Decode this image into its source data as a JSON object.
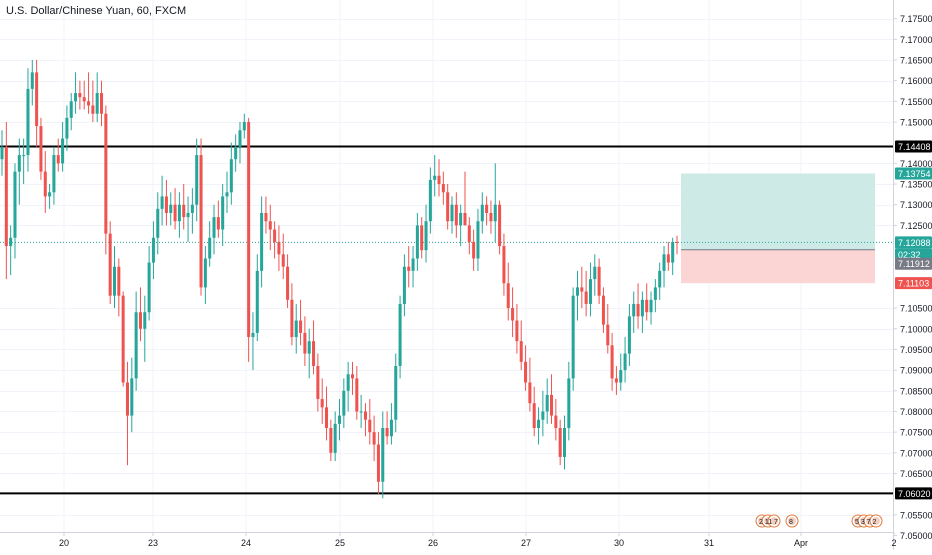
{
  "title": "U.S. Dollar/Chinese Yuan, 60, FXCM",
  "colors": {
    "up": "#26a69a",
    "down": "#ef5350",
    "grid": "#f0f3fa",
    "axis": "#d1d4dc",
    "text": "#131722",
    "level_line": "#000000",
    "level_label_bg": "#000000",
    "current_label_bg": "#26a69a",
    "position_label_bg": "#787b86",
    "stop_label_bg": "#ef5350",
    "target_zone": "#cdeae7",
    "stop_zone": "#fbd4d4"
  },
  "chart_data": {
    "type": "candlestick",
    "symbol": "U.S. Dollar/Chinese Yuan",
    "interval": "60",
    "source": "FXCM",
    "ylim": [
      7.0465,
      7.1795
    ],
    "y_ticks": [
      "7.17500",
      "7.17000",
      "7.16500",
      "7.16000",
      "7.15500",
      "7.15000",
      "7.14000",
      "7.13500",
      "7.13000",
      "7.12500",
      "7.10500",
      "7.10000",
      "7.09500",
      "7.09000",
      "7.08500",
      "7.08000",
      "7.07500",
      "7.07000",
      "7.06500",
      "7.05500",
      "7.05000"
    ],
    "x_ticks": [
      "20",
      "23",
      "24",
      "25",
      "26",
      "27",
      "30",
      "31",
      "Apr",
      "2"
    ],
    "horizontal_levels": [
      {
        "price": 7.14408,
        "label": "7.14408"
      },
      {
        "price": 7.0602,
        "label": "7.06020"
      }
    ],
    "price_labels": {
      "target": "7.13754",
      "current": "7.12088",
      "countdown": "02:32",
      "position": "7.11912",
      "stop": "7.11103"
    },
    "position_tool": {
      "entry": 7.11912,
      "target": 7.13754,
      "stop": 7.11103
    },
    "event_badges": [
      "2",
      "11",
      "7",
      "8",
      "5",
      "3",
      "7",
      "2"
    ],
    "candles": [
      {
        "o": 7.141,
        "h": 7.148,
        "l": 7.137,
        "c": 7.144
      },
      {
        "o": 7.144,
        "h": 7.15,
        "l": 7.112,
        "c": 7.12
      },
      {
        "o": 7.12,
        "h": 7.125,
        "l": 7.113,
        "c": 7.122
      },
      {
        "o": 7.122,
        "h": 7.14,
        "l": 7.117,
        "c": 7.138
      },
      {
        "o": 7.138,
        "h": 7.146,
        "l": 7.13,
        "c": 7.142
      },
      {
        "o": 7.142,
        "h": 7.146,
        "l": 7.135,
        "c": 7.142
      },
      {
        "o": 7.142,
        "h": 7.163,
        "l": 7.138,
        "c": 7.158
      },
      {
        "o": 7.158,
        "h": 7.165,
        "l": 7.154,
        "c": 7.162
      },
      {
        "o": 7.162,
        "h": 7.165,
        "l": 7.144,
        "c": 7.149
      },
      {
        "o": 7.149,
        "h": 7.151,
        "l": 7.136,
        "c": 7.138
      },
      {
        "o": 7.138,
        "h": 7.143,
        "l": 7.128,
        "c": 7.132
      },
      {
        "o": 7.132,
        "h": 7.135,
        "l": 7.129,
        "c": 7.133
      },
      {
        "o": 7.133,
        "h": 7.144,
        "l": 7.13,
        "c": 7.142
      },
      {
        "o": 7.142,
        "h": 7.146,
        "l": 7.138,
        "c": 7.14
      },
      {
        "o": 7.14,
        "h": 7.15,
        "l": 7.138,
        "c": 7.146
      },
      {
        "o": 7.146,
        "h": 7.154,
        "l": 7.143,
        "c": 7.151
      },
      {
        "o": 7.151,
        "h": 7.157,
        "l": 7.148,
        "c": 7.155
      },
      {
        "o": 7.155,
        "h": 7.162,
        "l": 7.152,
        "c": 7.157
      },
      {
        "o": 7.157,
        "h": 7.16,
        "l": 7.153,
        "c": 7.156
      },
      {
        "o": 7.156,
        "h": 7.16,
        "l": 7.153,
        "c": 7.155
      },
      {
        "o": 7.155,
        "h": 7.162,
        "l": 7.152,
        "c": 7.154
      },
      {
        "o": 7.154,
        "h": 7.16,
        "l": 7.15,
        "c": 7.152
      },
      {
        "o": 7.152,
        "h": 7.162,
        "l": 7.15,
        "c": 7.157
      },
      {
        "o": 7.157,
        "h": 7.16,
        "l": 7.149,
        "c": 7.152
      },
      {
        "o": 7.152,
        "h": 7.154,
        "l": 7.118,
        "c": 7.123
      },
      {
        "o": 7.123,
        "h": 7.126,
        "l": 7.106,
        "c": 7.108
      },
      {
        "o": 7.108,
        "h": 7.12,
        "l": 7.105,
        "c": 7.115
      },
      {
        "o": 7.115,
        "h": 7.117,
        "l": 7.103,
        "c": 7.108
      },
      {
        "o": 7.108,
        "h": 7.109,
        "l": 7.086,
        "c": 7.087
      },
      {
        "o": 7.087,
        "h": 7.092,
        "l": 7.067,
        "c": 7.079
      },
      {
        "o": 7.079,
        "h": 7.093,
        "l": 7.075,
        "c": 7.088
      },
      {
        "o": 7.088,
        "h": 7.109,
        "l": 7.085,
        "c": 7.104
      },
      {
        "o": 7.104,
        "h": 7.11,
        "l": 7.097,
        "c": 7.1
      },
      {
        "o": 7.1,
        "h": 7.108,
        "l": 7.092,
        "c": 7.104
      },
      {
        "o": 7.104,
        "h": 7.12,
        "l": 7.102,
        "c": 7.116
      },
      {
        "o": 7.116,
        "h": 7.126,
        "l": 7.112,
        "c": 7.122
      },
      {
        "o": 7.122,
        "h": 7.133,
        "l": 7.118,
        "c": 7.129
      },
      {
        "o": 7.129,
        "h": 7.137,
        "l": 7.125,
        "c": 7.132
      },
      {
        "o": 7.132,
        "h": 7.136,
        "l": 7.125,
        "c": 7.128
      },
      {
        "o": 7.128,
        "h": 7.133,
        "l": 7.125,
        "c": 7.13
      },
      {
        "o": 7.13,
        "h": 7.134,
        "l": 7.124,
        "c": 7.126
      },
      {
        "o": 7.126,
        "h": 7.133,
        "l": 7.122,
        "c": 7.13
      },
      {
        "o": 7.13,
        "h": 7.135,
        "l": 7.124,
        "c": 7.127
      },
      {
        "o": 7.127,
        "h": 7.132,
        "l": 7.121,
        "c": 7.128
      },
      {
        "o": 7.128,
        "h": 7.134,
        "l": 7.123,
        "c": 7.13
      },
      {
        "o": 7.13,
        "h": 7.146,
        "l": 7.126,
        "c": 7.142
      },
      {
        "o": 7.142,
        "h": 7.146,
        "l": 7.108,
        "c": 7.11
      },
      {
        "o": 7.11,
        "h": 7.12,
        "l": 7.106,
        "c": 7.117
      },
      {
        "o": 7.117,
        "h": 7.126,
        "l": 7.115,
        "c": 7.122
      },
      {
        "o": 7.122,
        "h": 7.13,
        "l": 7.118,
        "c": 7.127
      },
      {
        "o": 7.127,
        "h": 7.131,
        "l": 7.122,
        "c": 7.124
      },
      {
        "o": 7.124,
        "h": 7.135,
        "l": 7.12,
        "c": 7.132
      },
      {
        "o": 7.132,
        "h": 7.138,
        "l": 7.128,
        "c": 7.133
      },
      {
        "o": 7.133,
        "h": 7.145,
        "l": 7.13,
        "c": 7.141
      },
      {
        "o": 7.141,
        "h": 7.147,
        "l": 7.138,
        "c": 7.144
      },
      {
        "o": 7.144,
        "h": 7.15,
        "l": 7.14,
        "c": 7.148
      },
      {
        "o": 7.148,
        "h": 7.152,
        "l": 7.146,
        "c": 7.15
      },
      {
        "o": 7.15,
        "h": 7.151,
        "l": 7.092,
        "c": 7.098
      },
      {
        "o": 7.098,
        "h": 7.104,
        "l": 7.09,
        "c": 7.099
      },
      {
        "o": 7.099,
        "h": 7.118,
        "l": 7.097,
        "c": 7.114
      },
      {
        "o": 7.114,
        "h": 7.132,
        "l": 7.11,
        "c": 7.128
      },
      {
        "o": 7.128,
        "h": 7.132,
        "l": 7.123,
        "c": 7.126
      },
      {
        "o": 7.126,
        "h": 7.13,
        "l": 7.119,
        "c": 7.124
      },
      {
        "o": 7.124,
        "h": 7.126,
        "l": 7.117,
        "c": 7.121
      },
      {
        "o": 7.121,
        "h": 7.125,
        "l": 7.114,
        "c": 7.118
      },
      {
        "o": 7.118,
        "h": 7.123,
        "l": 7.112,
        "c": 7.115
      },
      {
        "o": 7.115,
        "h": 7.118,
        "l": 7.105,
        "c": 7.107
      },
      {
        "o": 7.107,
        "h": 7.111,
        "l": 7.096,
        "c": 7.098
      },
      {
        "o": 7.098,
        "h": 7.106,
        "l": 7.094,
        "c": 7.102
      },
      {
        "o": 7.102,
        "h": 7.107,
        "l": 7.096,
        "c": 7.099
      },
      {
        "o": 7.099,
        "h": 7.103,
        "l": 7.091,
        "c": 7.094
      },
      {
        "o": 7.094,
        "h": 7.1,
        "l": 7.088,
        "c": 7.097
      },
      {
        "o": 7.097,
        "h": 7.102,
        "l": 7.089,
        "c": 7.091
      },
      {
        "o": 7.091,
        "h": 7.094,
        "l": 7.08,
        "c": 7.083
      },
      {
        "o": 7.083,
        "h": 7.088,
        "l": 7.077,
        "c": 7.081
      },
      {
        "o": 7.081,
        "h": 7.086,
        "l": 7.073,
        "c": 7.076
      },
      {
        "o": 7.076,
        "h": 7.078,
        "l": 7.068,
        "c": 7.07
      },
      {
        "o": 7.07,
        "h": 7.08,
        "l": 7.068,
        "c": 7.077
      },
      {
        "o": 7.077,
        "h": 7.083,
        "l": 7.073,
        "c": 7.079
      },
      {
        "o": 7.079,
        "h": 7.088,
        "l": 7.076,
        "c": 7.085
      },
      {
        "o": 7.085,
        "h": 7.092,
        "l": 7.08,
        "c": 7.089
      },
      {
        "o": 7.089,
        "h": 7.092,
        "l": 7.084,
        "c": 7.088
      },
      {
        "o": 7.088,
        "h": 7.091,
        "l": 7.078,
        "c": 7.08
      },
      {
        "o": 7.08,
        "h": 7.084,
        "l": 7.076,
        "c": 7.08
      },
      {
        "o": 7.08,
        "h": 7.082,
        "l": 7.074,
        "c": 7.078
      },
      {
        "o": 7.078,
        "h": 7.083,
        "l": 7.072,
        "c": 7.075
      },
      {
        "o": 7.075,
        "h": 7.079,
        "l": 7.068,
        "c": 7.072
      },
      {
        "o": 7.072,
        "h": 7.075,
        "l": 7.06,
        "c": 7.063
      },
      {
        "o": 7.063,
        "h": 7.08,
        "l": 7.059,
        "c": 7.076
      },
      {
        "o": 7.076,
        "h": 7.08,
        "l": 7.072,
        "c": 7.074
      },
      {
        "o": 7.074,
        "h": 7.082,
        "l": 7.072,
        "c": 7.078
      },
      {
        "o": 7.078,
        "h": 7.094,
        "l": 7.075,
        "c": 7.091
      },
      {
        "o": 7.091,
        "h": 7.108,
        "l": 7.088,
        "c": 7.106
      },
      {
        "o": 7.106,
        "h": 7.118,
        "l": 7.103,
        "c": 7.115
      },
      {
        "o": 7.115,
        "h": 7.12,
        "l": 7.11,
        "c": 7.114
      },
      {
        "o": 7.114,
        "h": 7.12,
        "l": 7.11,
        "c": 7.117
      },
      {
        "o": 7.117,
        "h": 7.128,
        "l": 7.114,
        "c": 7.125
      },
      {
        "o": 7.125,
        "h": 7.127,
        "l": 7.117,
        "c": 7.119
      },
      {
        "o": 7.119,
        "h": 7.13,
        "l": 7.116,
        "c": 7.126
      },
      {
        "o": 7.126,
        "h": 7.139,
        "l": 7.123,
        "c": 7.136
      },
      {
        "o": 7.136,
        "h": 7.142,
        "l": 7.132,
        "c": 7.137
      },
      {
        "o": 7.137,
        "h": 7.141,
        "l": 7.132,
        "c": 7.135
      },
      {
        "o": 7.135,
        "h": 7.138,
        "l": 7.13,
        "c": 7.133
      },
      {
        "o": 7.133,
        "h": 7.135,
        "l": 7.124,
        "c": 7.126
      },
      {
        "o": 7.126,
        "h": 7.132,
        "l": 7.123,
        "c": 7.13
      },
      {
        "o": 7.13,
        "h": 7.133,
        "l": 7.122,
        "c": 7.125
      },
      {
        "o": 7.125,
        "h": 7.13,
        "l": 7.12,
        "c": 7.128
      },
      {
        "o": 7.128,
        "h": 7.138,
        "l": 7.125,
        "c": 7.125
      },
      {
        "o": 7.125,
        "h": 7.127,
        "l": 7.118,
        "c": 7.121
      },
      {
        "o": 7.121,
        "h": 7.124,
        "l": 7.114,
        "c": 7.117
      },
      {
        "o": 7.117,
        "h": 7.129,
        "l": 7.114,
        "c": 7.126
      },
      {
        "o": 7.126,
        "h": 7.133,
        "l": 7.123,
        "c": 7.13
      },
      {
        "o": 7.13,
        "h": 7.132,
        "l": 7.125,
        "c": 7.128
      },
      {
        "o": 7.128,
        "h": 7.131,
        "l": 7.123,
        "c": 7.126
      },
      {
        "o": 7.126,
        "h": 7.14,
        "l": 7.121,
        "c": 7.13
      },
      {
        "o": 7.13,
        "h": 7.131,
        "l": 7.118,
        "c": 7.12
      },
      {
        "o": 7.12,
        "h": 7.123,
        "l": 7.108,
        "c": 7.111
      },
      {
        "o": 7.111,
        "h": 7.116,
        "l": 7.102,
        "c": 7.105
      },
      {
        "o": 7.105,
        "h": 7.11,
        "l": 7.098,
        "c": 7.102
      },
      {
        "o": 7.102,
        "h": 7.106,
        "l": 7.094,
        "c": 7.097
      },
      {
        "o": 7.097,
        "h": 7.102,
        "l": 7.09,
        "c": 7.092
      },
      {
        "o": 7.092,
        "h": 7.096,
        "l": 7.085,
        "c": 7.087
      },
      {
        "o": 7.087,
        "h": 7.093,
        "l": 7.08,
        "c": 7.082
      },
      {
        "o": 7.082,
        "h": 7.086,
        "l": 7.074,
        "c": 7.076
      },
      {
        "o": 7.076,
        "h": 7.081,
        "l": 7.072,
        "c": 7.078
      },
      {
        "o": 7.078,
        "h": 7.085,
        "l": 7.074,
        "c": 7.08
      },
      {
        "o": 7.08,
        "h": 7.088,
        "l": 7.077,
        "c": 7.084
      },
      {
        "o": 7.084,
        "h": 7.089,
        "l": 7.077,
        "c": 7.079
      },
      {
        "o": 7.079,
        "h": 7.083,
        "l": 7.073,
        "c": 7.076
      },
      {
        "o": 7.076,
        "h": 7.078,
        "l": 7.067,
        "c": 7.069
      },
      {
        "o": 7.069,
        "h": 7.079,
        "l": 7.066,
        "c": 7.076
      },
      {
        "o": 7.076,
        "h": 7.092,
        "l": 7.073,
        "c": 7.088
      },
      {
        "o": 7.088,
        "h": 7.11,
        "l": 7.085,
        "c": 7.108
      },
      {
        "o": 7.108,
        "h": 7.114,
        "l": 7.102,
        "c": 7.11
      },
      {
        "o": 7.11,
        "h": 7.115,
        "l": 7.105,
        "c": 7.109
      },
      {
        "o": 7.109,
        "h": 7.114,
        "l": 7.103,
        "c": 7.106
      },
      {
        "o": 7.106,
        "h": 7.116,
        "l": 7.103,
        "c": 7.112
      },
      {
        "o": 7.112,
        "h": 7.118,
        "l": 7.108,
        "c": 7.115
      },
      {
        "o": 7.115,
        "h": 7.117,
        "l": 7.106,
        "c": 7.108
      },
      {
        "o": 7.108,
        "h": 7.11,
        "l": 7.099,
        "c": 7.101
      },
      {
        "o": 7.101,
        "h": 7.106,
        "l": 7.094,
        "c": 7.096
      },
      {
        "o": 7.096,
        "h": 7.099,
        "l": 7.085,
        "c": 7.088
      },
      {
        "o": 7.088,
        "h": 7.091,
        "l": 7.084,
        "c": 7.087
      },
      {
        "o": 7.087,
        "h": 7.094,
        "l": 7.085,
        "c": 7.09
      },
      {
        "o": 7.09,
        "h": 7.098,
        "l": 7.087,
        "c": 7.094
      },
      {
        "o": 7.094,
        "h": 7.106,
        "l": 7.091,
        "c": 7.103
      },
      {
        "o": 7.103,
        "h": 7.109,
        "l": 7.099,
        "c": 7.106
      },
      {
        "o": 7.106,
        "h": 7.111,
        "l": 7.1,
        "c": 7.103
      },
      {
        "o": 7.103,
        "h": 7.109,
        "l": 7.099,
        "c": 7.107
      },
      {
        "o": 7.107,
        "h": 7.111,
        "l": 7.102,
        "c": 7.104
      },
      {
        "o": 7.104,
        "h": 7.109,
        "l": 7.101,
        "c": 7.107
      },
      {
        "o": 7.107,
        "h": 7.112,
        "l": 7.104,
        "c": 7.11
      },
      {
        "o": 7.11,
        "h": 7.116,
        "l": 7.107,
        "c": 7.114
      },
      {
        "o": 7.114,
        "h": 7.12,
        "l": 7.11,
        "c": 7.118
      },
      {
        "o": 7.118,
        "h": 7.121,
        "l": 7.114,
        "c": 7.116
      },
      {
        "o": 7.116,
        "h": 7.122,
        "l": 7.113,
        "c": 7.121
      },
      {
        "o": 7.121,
        "h": 7.1225,
        "l": 7.118,
        "c": 7.1209
      }
    ]
  }
}
